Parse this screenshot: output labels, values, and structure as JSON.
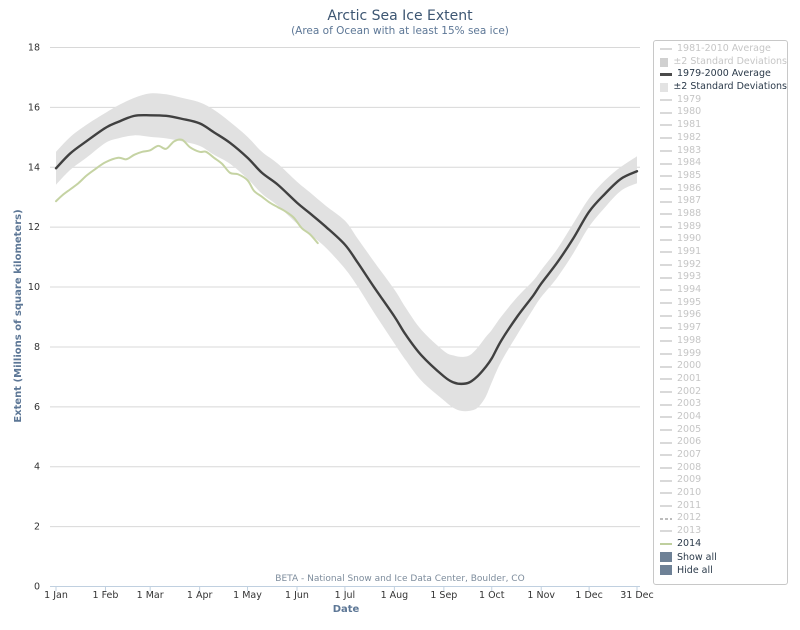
{
  "chart_data": {
    "type": "line",
    "title": "Arctic Sea Ice Extent",
    "subtitle": "(Area of Ocean with at least 15% sea ice)",
    "xlabel": "Date",
    "ylabel": "Extent (Millions of square kilometers)",
    "ylim": [
      0,
      18
    ],
    "yticks": [
      0,
      2,
      4,
      6,
      8,
      10,
      12,
      14,
      16,
      18
    ],
    "xlim": [
      1,
      365
    ],
    "xticks": [
      {
        "day": 1,
        "label": "1 Jan"
      },
      {
        "day": 32,
        "label": "1 Feb"
      },
      {
        "day": 60,
        "label": "1 Mar"
      },
      {
        "day": 91,
        "label": "1 Apr"
      },
      {
        "day": 121,
        "label": "1 May"
      },
      {
        "day": 152,
        "label": "1 Jun"
      },
      {
        "day": 182,
        "label": "1 Jul"
      },
      {
        "day": 213,
        "label": "1 Aug"
      },
      {
        "day": 244,
        "label": "1 Sep"
      },
      {
        "day": 274,
        "label": "1 Oct"
      },
      {
        "day": 305,
        "label": "1 Nov"
      },
      {
        "day": 335,
        "label": "1 Dec"
      },
      {
        "day": 365,
        "label": "31 Dec"
      }
    ],
    "grid": true,
    "credit": "BETA - National Snow and Ice Data Center, Boulder, CO",
    "series": [
      {
        "name": "1979-2000 Average",
        "color": "#404040",
        "x": [
          1,
          10,
          20,
          32,
          40,
          50,
          60,
          70,
          80,
          91,
          100,
          110,
          121,
          130,
          140,
          152,
          160,
          170,
          182,
          190,
          200,
          213,
          220,
          230,
          244,
          250,
          255,
          260,
          265,
          270,
          274,
          280,
          290,
          300,
          305,
          315,
          325,
          335,
          345,
          355,
          365
        ],
        "y": [
          13.95,
          14.45,
          14.85,
          15.3,
          15.5,
          15.7,
          15.72,
          15.7,
          15.6,
          15.45,
          15.15,
          14.8,
          14.3,
          13.8,
          13.4,
          12.8,
          12.45,
          12.0,
          11.4,
          10.8,
          10.0,
          9.0,
          8.4,
          7.7,
          7.0,
          6.8,
          6.75,
          6.8,
          7.0,
          7.3,
          7.6,
          8.2,
          9.0,
          9.7,
          10.1,
          10.8,
          11.6,
          12.5,
          13.1,
          13.6,
          13.85
        ]
      },
      {
        "name": "±2 Standard Deviations",
        "type": "band",
        "color": "#e1e1e1",
        "x": [
          1,
          10,
          20,
          32,
          40,
          50,
          60,
          70,
          80,
          91,
          100,
          110,
          121,
          130,
          140,
          152,
          160,
          170,
          182,
          190,
          200,
          213,
          220,
          230,
          244,
          250,
          255,
          260,
          265,
          270,
          274,
          280,
          290,
          300,
          305,
          315,
          325,
          335,
          345,
          355,
          365
        ],
        "low": [
          13.4,
          13.9,
          14.3,
          14.8,
          14.95,
          15.05,
          15.0,
          14.95,
          14.85,
          14.7,
          14.4,
          14.1,
          13.6,
          13.1,
          12.7,
          12.1,
          11.75,
          11.3,
          10.6,
          10.0,
          9.15,
          8.1,
          7.55,
          6.85,
          6.2,
          5.95,
          5.85,
          5.85,
          5.95,
          6.3,
          6.8,
          7.5,
          8.4,
          9.25,
          9.65,
          10.3,
          11.1,
          12.0,
          12.65,
          13.2,
          13.45
        ],
        "high": [
          14.5,
          15.0,
          15.4,
          15.8,
          16.05,
          16.3,
          16.45,
          16.42,
          16.3,
          16.15,
          15.9,
          15.5,
          15.0,
          14.5,
          14.1,
          13.5,
          13.15,
          12.7,
          12.2,
          11.6,
          10.85,
          9.9,
          9.3,
          8.55,
          7.85,
          7.7,
          7.65,
          7.7,
          7.95,
          8.3,
          8.55,
          9.0,
          9.65,
          10.2,
          10.55,
          11.25,
          12.1,
          12.95,
          13.55,
          14.0,
          14.35
        ]
      },
      {
        "name": "2014",
        "color": "#c5d3a3",
        "x": [
          1,
          5,
          10,
          15,
          20,
          25,
          32,
          40,
          45,
          50,
          55,
          60,
          65,
          70,
          75,
          80,
          85,
          91,
          95,
          100,
          105,
          110,
          115,
          121,
          125,
          130,
          135,
          140,
          145,
          150,
          155,
          160,
          165
        ],
        "y": [
          12.85,
          13.05,
          13.25,
          13.45,
          13.7,
          13.9,
          14.15,
          14.3,
          14.25,
          14.4,
          14.5,
          14.55,
          14.7,
          14.6,
          14.85,
          14.9,
          14.65,
          14.5,
          14.5,
          14.3,
          14.1,
          13.8,
          13.75,
          13.55,
          13.2,
          13.0,
          12.8,
          12.65,
          12.5,
          12.3,
          11.95,
          11.75,
          11.45
        ]
      }
    ]
  },
  "legend": {
    "items": [
      {
        "label": "1981-2010 Average",
        "symbol": "line",
        "active": false
      },
      {
        "label": "±2 Standard Deviations",
        "symbol": "box",
        "active": false
      },
      {
        "label": "1979-2000 Average",
        "symbol": "line-dark",
        "active": true
      },
      {
        "label": "±2 Standard Deviations",
        "symbol": "box-light",
        "active": true
      },
      {
        "label": "1979",
        "symbol": "line",
        "active": false
      },
      {
        "label": "1980",
        "symbol": "line",
        "active": false
      },
      {
        "label": "1981",
        "symbol": "line",
        "active": false
      },
      {
        "label": "1982",
        "symbol": "line",
        "active": false
      },
      {
        "label": "1983",
        "symbol": "line",
        "active": false
      },
      {
        "label": "1984",
        "symbol": "line",
        "active": false
      },
      {
        "label": "1985",
        "symbol": "line",
        "active": false
      },
      {
        "label": "1986",
        "symbol": "line",
        "active": false
      },
      {
        "label": "1987",
        "symbol": "line",
        "active": false
      },
      {
        "label": "1988",
        "symbol": "line",
        "active": false
      },
      {
        "label": "1989",
        "symbol": "line",
        "active": false
      },
      {
        "label": "1990",
        "symbol": "line",
        "active": false
      },
      {
        "label": "1991",
        "symbol": "line",
        "active": false
      },
      {
        "label": "1992",
        "symbol": "line",
        "active": false
      },
      {
        "label": "1993",
        "symbol": "line",
        "active": false
      },
      {
        "label": "1994",
        "symbol": "line",
        "active": false
      },
      {
        "label": "1995",
        "symbol": "line",
        "active": false
      },
      {
        "label": "1996",
        "symbol": "line",
        "active": false
      },
      {
        "label": "1997",
        "symbol": "line",
        "active": false
      },
      {
        "label": "1998",
        "symbol": "line",
        "active": false
      },
      {
        "label": "1999",
        "symbol": "line",
        "active": false
      },
      {
        "label": "2000",
        "symbol": "line",
        "active": false
      },
      {
        "label": "2001",
        "symbol": "line",
        "active": false
      },
      {
        "label": "2002",
        "symbol": "line",
        "active": false
      },
      {
        "label": "2003",
        "symbol": "line",
        "active": false
      },
      {
        "label": "2004",
        "symbol": "line",
        "active": false
      },
      {
        "label": "2005",
        "symbol": "line",
        "active": false
      },
      {
        "label": "2006",
        "symbol": "line",
        "active": false
      },
      {
        "label": "2007",
        "symbol": "line",
        "active": false
      },
      {
        "label": "2008",
        "symbol": "line",
        "active": false
      },
      {
        "label": "2009",
        "symbol": "line",
        "active": false
      },
      {
        "label": "2010",
        "symbol": "line",
        "active": false
      },
      {
        "label": "2011",
        "symbol": "line",
        "active": false
      },
      {
        "label": "2012",
        "symbol": "dash",
        "active": false
      },
      {
        "label": "2013",
        "symbol": "line",
        "active": false
      },
      {
        "label": "2014",
        "symbol": "line-green",
        "active": true
      }
    ],
    "show_all_label": "Show all",
    "hide_all_label": "Hide all"
  }
}
